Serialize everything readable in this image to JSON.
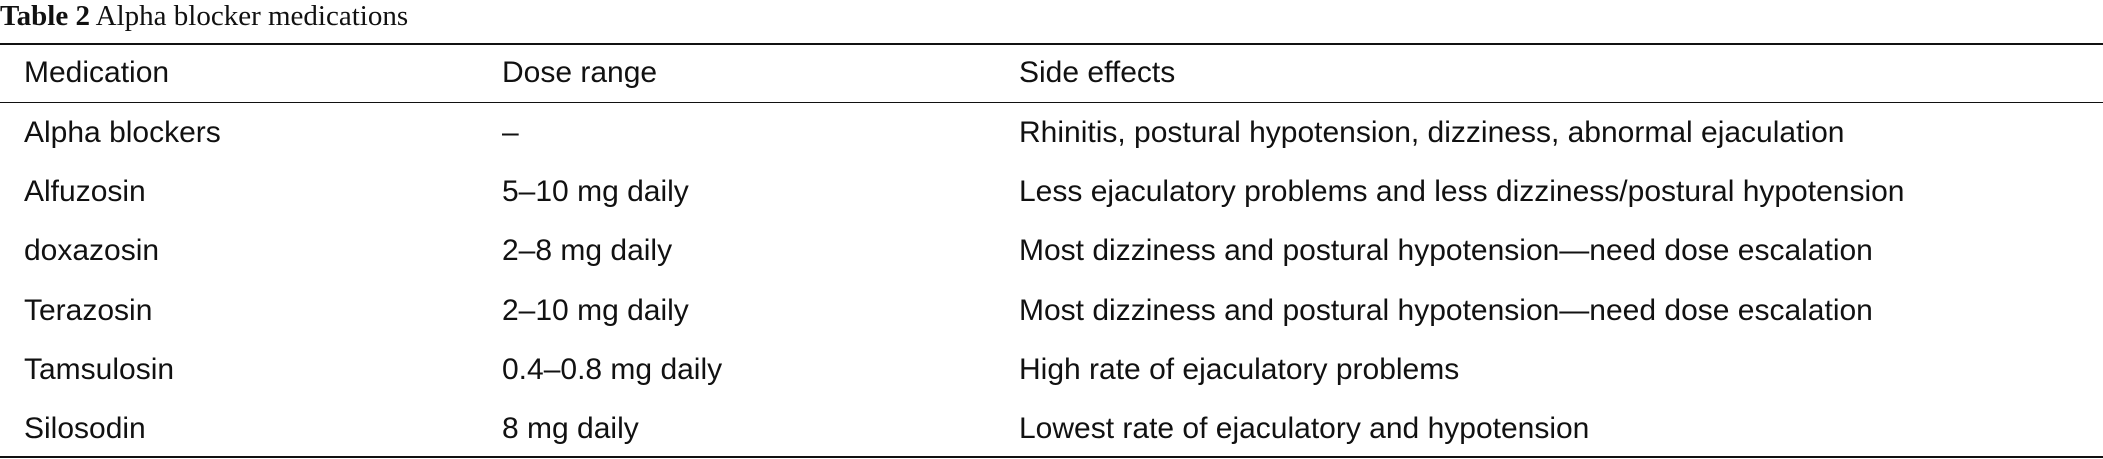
{
  "caption": {
    "label": "Table 2",
    "title": "Alpha blocker medications"
  },
  "table": {
    "header": [
      "Medication",
      "Dose range",
      "Side effects"
    ],
    "rows": [
      [
        "Alpha blockers",
        "–",
        "Rhinitis, postural hypotension, dizziness, abnormal ejaculation"
      ],
      [
        "Alfuzosin",
        "5–10 mg daily",
        "Less ejaculatory problems and less dizziness/postural hypotension"
      ],
      [
        "doxazosin",
        "2–8 mg daily",
        "Most dizziness and postural hypotension—need dose escalation"
      ],
      [
        "Terazosin",
        "2–10 mg daily",
        "Most dizziness and postural hypotension—need dose escalation"
      ],
      [
        "Tamsulosin",
        "0.4–0.8 mg daily",
        "High rate of ejaculatory problems"
      ],
      [
        "Silosodin",
        "8 mg daily",
        "Lowest rate of ejaculatory and hypotension"
      ]
    ]
  }
}
